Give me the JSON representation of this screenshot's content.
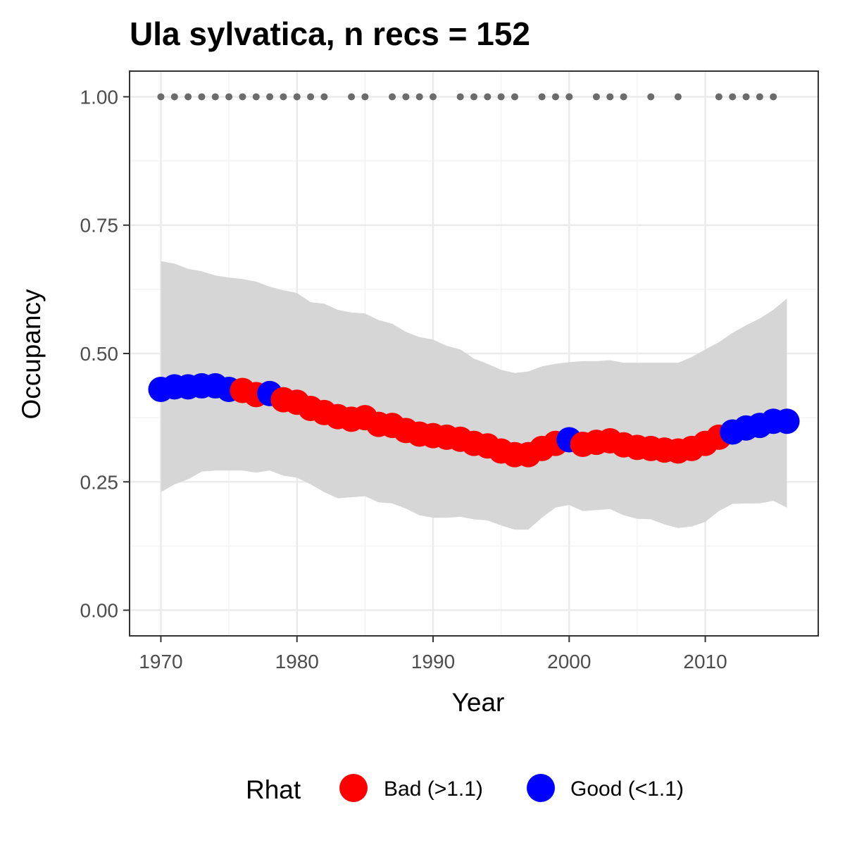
{
  "chart_data": {
    "type": "line",
    "title": "Ula sylvatica, n recs = 152",
    "xlabel": "Year",
    "ylabel": "Occupancy",
    "xlim": [
      1967.7,
      2018.3
    ],
    "ylim": [
      -0.05,
      1.05
    ],
    "xticks": [
      1970,
      1980,
      1990,
      2000,
      2010
    ],
    "xtick_labels": [
      "1970",
      "1980",
      "1990",
      "2000",
      "2010"
    ],
    "yticks": [
      0,
      0.25,
      0.5,
      0.75,
      1
    ],
    "ytick_labels": [
      "0.00",
      "0.25",
      "0.50",
      "0.75",
      "1.00"
    ],
    "grid": true,
    "legend": {
      "title": "Rhat",
      "position": "bottom"
    },
    "colors": {
      "Bad": "#ff0000",
      "Good": "#0000ff",
      "ribbon": "#d6d6d6",
      "records": "#6b6b6b"
    },
    "categories_legend": [
      {
        "key": "Bad",
        "label": "Bad (>1.1)"
      },
      {
        "key": "Good",
        "label": "Good (<1.1)"
      }
    ],
    "series": [
      {
        "name": "Occupancy",
        "x": [
          1970,
          1971,
          1972,
          1973,
          1974,
          1975,
          1976,
          1977,
          1978,
          1979,
          1980,
          1981,
          1982,
          1983,
          1984,
          1985,
          1986,
          1987,
          1988,
          1989,
          1990,
          1991,
          1992,
          1993,
          1994,
          1995,
          1996,
          1997,
          1998,
          1999,
          2000,
          2001,
          2002,
          2003,
          2004,
          2005,
          2006,
          2007,
          2008,
          2009,
          2010,
          2011,
          2012,
          2013,
          2014,
          2015,
          2016
        ],
        "y": [
          0.43,
          0.435,
          0.435,
          0.437,
          0.437,
          0.43,
          0.428,
          0.42,
          0.422,
          0.41,
          0.405,
          0.393,
          0.385,
          0.377,
          0.372,
          0.375,
          0.362,
          0.36,
          0.35,
          0.343,
          0.34,
          0.337,
          0.333,
          0.325,
          0.32,
          0.31,
          0.303,
          0.303,
          0.315,
          0.325,
          0.332,
          0.323,
          0.327,
          0.33,
          0.322,
          0.317,
          0.315,
          0.312,
          0.31,
          0.315,
          0.325,
          0.337,
          0.347,
          0.355,
          0.36,
          0.368,
          0.368
        ],
        "rhat": [
          "Good",
          "Good",
          "Good",
          "Good",
          "Good",
          "Good",
          "Bad",
          "Bad",
          "Good",
          "Bad",
          "Bad",
          "Bad",
          "Bad",
          "Bad",
          "Bad",
          "Bad",
          "Bad",
          "Bad",
          "Bad",
          "Bad",
          "Bad",
          "Bad",
          "Bad",
          "Bad",
          "Bad",
          "Bad",
          "Bad",
          "Bad",
          "Bad",
          "Bad",
          "Good",
          "Bad",
          "Bad",
          "Bad",
          "Bad",
          "Bad",
          "Bad",
          "Bad",
          "Bad",
          "Bad",
          "Bad",
          "Bad",
          "Good",
          "Good",
          "Good",
          "Good",
          "Good"
        ],
        "lower": [
          0.23,
          0.245,
          0.255,
          0.27,
          0.272,
          0.272,
          0.272,
          0.268,
          0.272,
          0.262,
          0.258,
          0.245,
          0.23,
          0.218,
          0.22,
          0.222,
          0.21,
          0.208,
          0.198,
          0.185,
          0.18,
          0.18,
          0.182,
          0.177,
          0.175,
          0.165,
          0.157,
          0.157,
          0.18,
          0.2,
          0.205,
          0.193,
          0.195,
          0.197,
          0.185,
          0.178,
          0.177,
          0.167,
          0.16,
          0.163,
          0.172,
          0.193,
          0.207,
          0.208,
          0.208,
          0.213,
          0.2
        ],
        "upper": [
          0.68,
          0.675,
          0.665,
          0.66,
          0.652,
          0.648,
          0.645,
          0.64,
          0.63,
          0.623,
          0.618,
          0.6,
          0.597,
          0.585,
          0.58,
          0.578,
          0.565,
          0.558,
          0.542,
          0.532,
          0.527,
          0.515,
          0.508,
          0.49,
          0.48,
          0.468,
          0.462,
          0.465,
          0.475,
          0.48,
          0.483,
          0.485,
          0.485,
          0.487,
          0.482,
          0.482,
          0.482,
          0.482,
          0.482,
          0.493,
          0.508,
          0.522,
          0.54,
          0.555,
          0.568,
          0.585,
          0.607
        ]
      },
      {
        "name": "records",
        "x": [
          1970,
          1971,
          1972,
          1973,
          1974,
          1975,
          1976,
          1977,
          1978,
          1979,
          1980,
          1981,
          1982,
          1984,
          1985,
          1987,
          1988,
          1989,
          1990,
          1992,
          1993,
          1994,
          1995,
          1996,
          1998,
          1999,
          2000,
          2002,
          2003,
          2004,
          2006,
          2008,
          2011,
          2012,
          2013,
          2014,
          2015
        ],
        "y": 1.0
      }
    ]
  }
}
